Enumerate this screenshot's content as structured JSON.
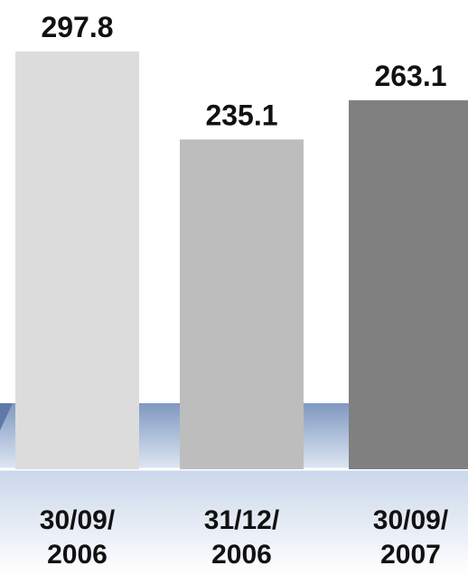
{
  "chart_data": {
    "type": "bar",
    "title": "",
    "xlabel": "",
    "ylabel": "",
    "categories": [
      {
        "line1": "30/09/",
        "line2": "2006"
      },
      {
        "line1": "31/12/",
        "line2": "2006"
      },
      {
        "line1": "30/09/",
        "line2": "2007"
      }
    ],
    "values": [
      297.8,
      235.1,
      263.1
    ],
    "value_labels": [
      "297.8",
      "235.1",
      "263.1"
    ],
    "bar_colors": [
      "#dcdcdc",
      "#bdbdbd",
      "#808080"
    ],
    "ylim": [
      0,
      297.8
    ],
    "grid": false,
    "legend": "none"
  },
  "style": {
    "band_colors": {
      "top": "#7f98c0",
      "bottom": "#dde6f3",
      "base": "#c9d6ea"
    }
  }
}
